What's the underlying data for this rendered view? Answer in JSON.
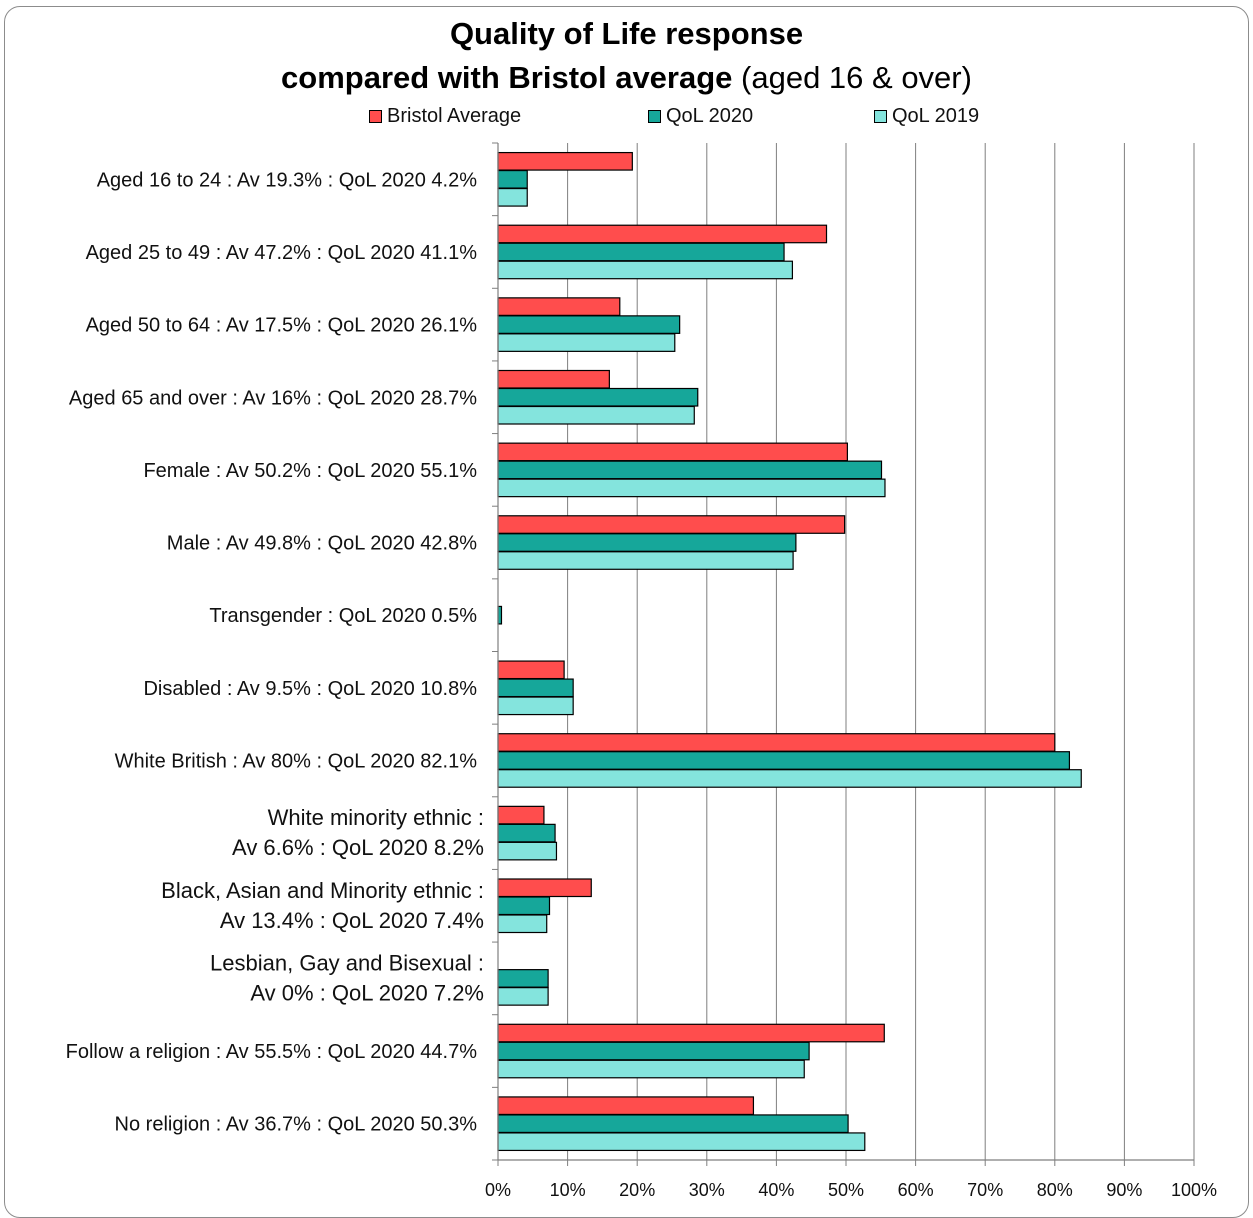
{
  "chart_data": {
    "type": "bar",
    "orientation": "horizontal",
    "title_line1": "Quality of Life response",
    "title_line2_bold": "compared with Bristol average",
    "title_line2_rest": " (aged 16 & over)",
    "categories": [
      [
        "Aged 16 to 24 : Av 19.3% : QoL 2020 4.2%"
      ],
      [
        "Aged 25 to 49 : Av 47.2% : QoL 2020 41.1%"
      ],
      [
        "Aged 50 to 64 : Av 17.5% : QoL 2020 26.1%"
      ],
      [
        "Aged 65 and over : Av 16% : QoL 2020 28.7%"
      ],
      [
        "Female : Av 50.2% : QoL 2020 55.1%"
      ],
      [
        "Male : Av 49.8% : QoL 2020 42.8%"
      ],
      [
        "Transgender : QoL 2020 0.5%"
      ],
      [
        "Disabled : Av 9.5% : QoL 2020 10.8%"
      ],
      [
        "White British : Av 80% : QoL 2020 82.1%"
      ],
      [
        "White minority ethnic :",
        "Av 6.6% : QoL 2020 8.2%"
      ],
      [
        "Black, Asian and Minority ethnic :",
        "Av 13.4% : QoL 2020 7.4%"
      ],
      [
        "Lesbian, Gay and Bisexual :",
        "Av 0% : QoL 2020 7.2%"
      ],
      [
        "Follow a religion : Av 55.5% : QoL 2020 44.7%"
      ],
      [
        "No religion : Av 36.7% : QoL 2020 50.3%"
      ]
    ],
    "series": [
      {
        "name": "Bristol Average",
        "color": "#ff4d4d",
        "values": [
          19.3,
          47.2,
          17.5,
          16.0,
          50.2,
          49.8,
          null,
          9.5,
          80.0,
          6.6,
          13.4,
          0.0,
          55.5,
          36.7
        ]
      },
      {
        "name": "QoL 2020",
        "color": "#16a79a",
        "values": [
          4.2,
          41.1,
          26.1,
          28.7,
          55.1,
          42.8,
          0.5,
          10.8,
          82.1,
          8.2,
          7.4,
          7.2,
          44.7,
          50.3
        ]
      },
      {
        "name": "QoL 2019",
        "color": "#84e4dd",
        "values": [
          4.2,
          42.3,
          25.4,
          28.2,
          55.6,
          42.4,
          null,
          10.8,
          83.8,
          8.4,
          7.0,
          7.2,
          44.0,
          52.7
        ]
      }
    ],
    "xlim": [
      0,
      100
    ],
    "x_ticks": [
      "0%",
      "10%",
      "20%",
      "30%",
      "40%",
      "50%",
      "60%",
      "70%",
      "80%",
      "90%",
      "100%"
    ],
    "grid": "vertical",
    "legend_position": "top"
  }
}
